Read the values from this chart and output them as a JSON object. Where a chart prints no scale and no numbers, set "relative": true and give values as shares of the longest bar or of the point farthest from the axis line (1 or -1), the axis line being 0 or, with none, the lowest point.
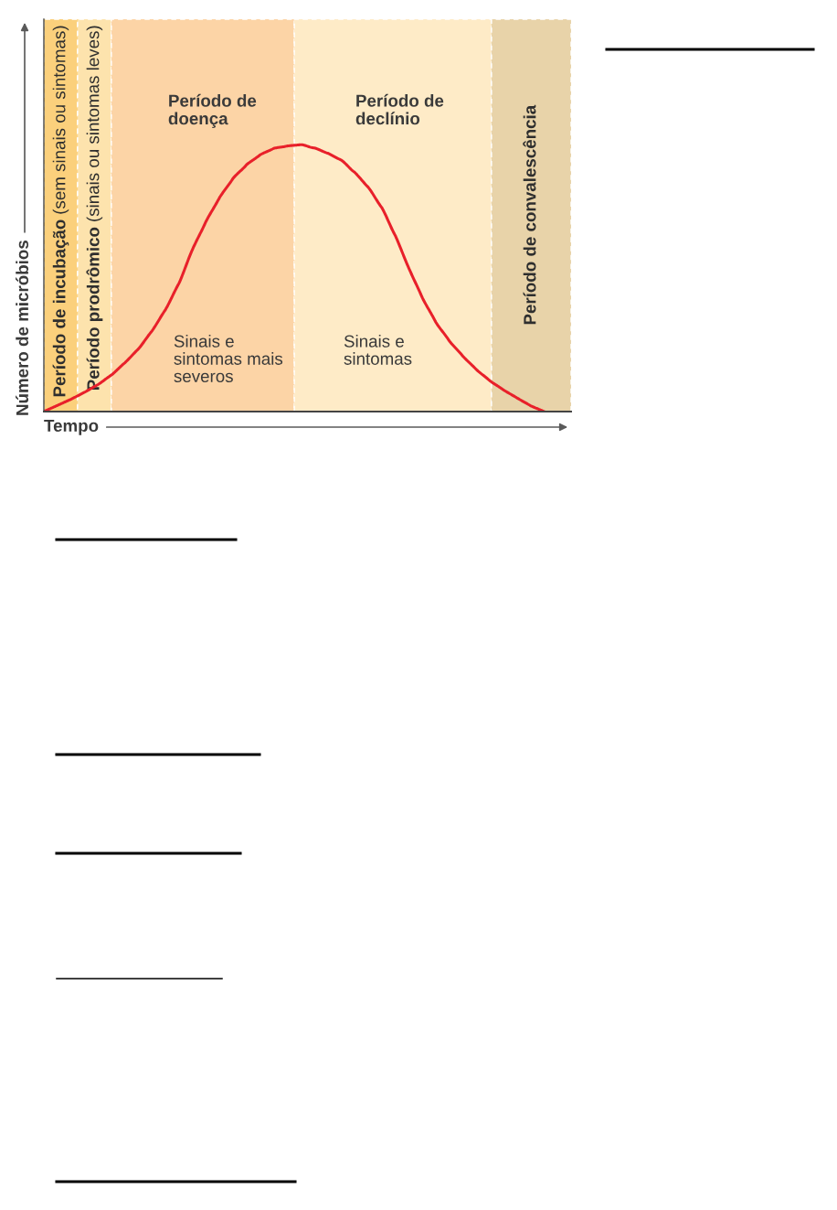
{
  "chart_data": {
    "type": "line",
    "relative": true,
    "xlabel": "Tempo",
    "ylabel": "Número de micróbios",
    "categories": [
      null,
      null,
      null,
      null,
      null,
      null,
      null,
      null,
      null,
      null,
      null,
      null,
      null,
      null,
      null,
      null,
      null,
      null,
      null,
      null,
      null,
      null,
      null,
      null,
      null,
      null,
      null,
      null,
      null,
      null,
      null,
      null,
      null,
      null,
      null,
      null,
      null,
      null,
      null,
      null
    ],
    "series": [
      {
        "color": "#e8202a",
        "values": [
          0.0,
          0.023,
          0.046,
          0.072,
          0.101,
          0.137,
          0.183,
          0.235,
          0.302,
          0.382,
          0.481,
          0.608,
          0.713,
          0.802,
          0.874,
          0.925,
          0.962,
          0.986,
          0.995,
          1.0,
          0.988,
          0.968,
          0.942,
          0.896,
          0.84,
          0.764,
          0.659,
          0.537,
          0.426,
          0.334,
          0.264,
          0.207,
          0.157,
          0.115,
          0.081,
          0.051,
          0.022,
          0.0,
          null,
          null
        ]
      }
    ],
    "annotations": [
      "Período de incubação (sem sinais ou sintomas)",
      "Período prodrômico (sinais ou sintomas leves)",
      "Período de\ndoença",
      "Período de\ndeclínio",
      "Período de convalescência",
      "Sinais e\nsintomas mais\nseveros",
      "Sinais e\nsintomas"
    ]
  }
}
